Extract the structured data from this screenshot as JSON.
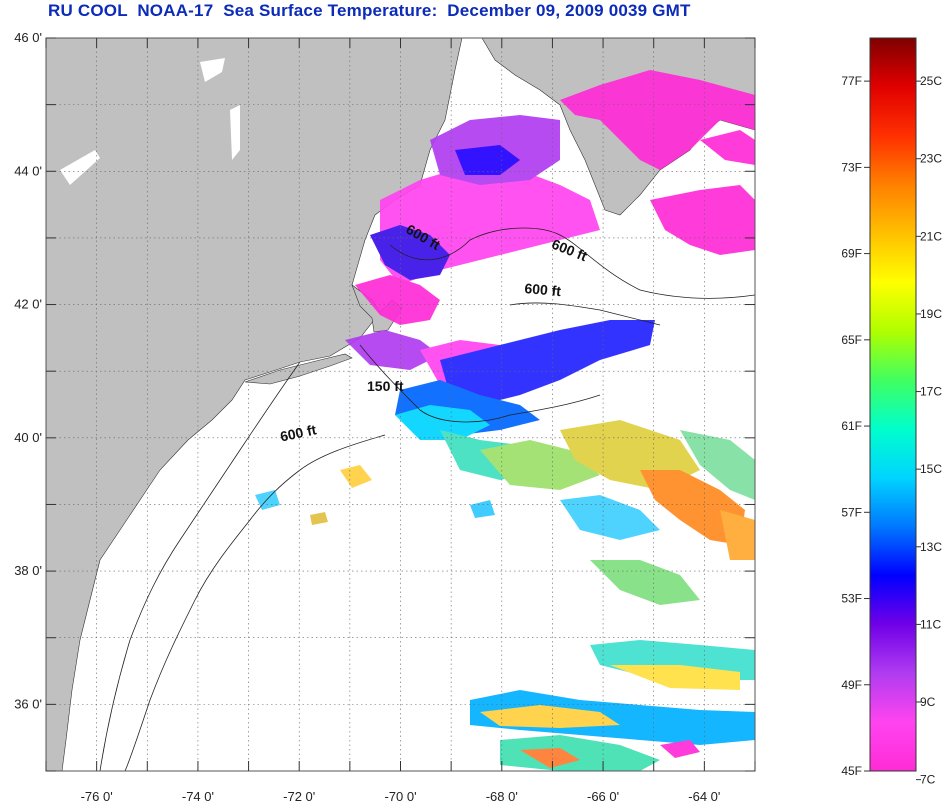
{
  "title": "RU COOL  NOAA-17  Sea Surface Temperature:  December 09, 2009 0039 GMT",
  "map": {
    "lon_range": [
      -77,
      -63
    ],
    "lat_range": [
      35,
      46
    ],
    "lat_labels": [
      {
        "lat": 46,
        "text": "46 0'"
      },
      {
        "lat": 44,
        "text": "44 0'"
      },
      {
        "lat": 42,
        "text": "42 0'"
      },
      {
        "lat": 40,
        "text": "40 0'"
      },
      {
        "lat": 38,
        "text": "38 0'"
      },
      {
        "lat": 36,
        "text": "36 0'"
      }
    ],
    "lon_labels": [
      {
        "lon": -76,
        "text": "-76 0'"
      },
      {
        "lon": -74,
        "text": "-74 0'"
      },
      {
        "lon": -72,
        "text": "-72 0'"
      },
      {
        "lon": -70,
        "text": "-70 0'"
      },
      {
        "lon": -68,
        "text": "-68 0'"
      },
      {
        "lon": -66,
        "text": "-66 0'"
      },
      {
        "lon": -64,
        "text": "-64 0'"
      }
    ],
    "contour_labels": [
      {
        "text": "600 ft",
        "lon": -69.6,
        "lat": 42.95,
        "angle": 30
      },
      {
        "text": "600 ft",
        "lon": -66.7,
        "lat": 42.75,
        "angle": 22
      },
      {
        "text": "600 ft",
        "lon": -67.2,
        "lat": 42.15,
        "angle": 5
      },
      {
        "text": "150 ft",
        "lon": -70.3,
        "lat": 40.7,
        "angle": 0
      },
      {
        "text": "600 ft",
        "lon": -72.0,
        "lat": 40.0,
        "angle": -12
      }
    ],
    "land_color": "#c0c0c0",
    "no_data_color": "#ffffff"
  },
  "colorbar": {
    "min_f": 45,
    "max_f": 79,
    "fahrenheit_labels": [
      "77F",
      "73F",
      "69F",
      "65F",
      "61F",
      "57F",
      "53F",
      "49F",
      "45F"
    ],
    "fahrenheit_values": [
      77,
      73,
      69,
      65,
      61,
      57,
      53,
      49,
      45
    ],
    "celsius_labels": [
      "25C",
      "23C",
      "21C",
      "19C",
      "17C",
      "15C",
      "13C",
      "11C",
      "9C",
      "7C"
    ],
    "celsius_values": [
      25,
      23,
      21,
      19,
      17,
      15,
      13,
      11,
      9,
      7
    ],
    "colors": [
      "#ff2bd6",
      "#ff44f0",
      "#b03cf0",
      "#7000e8",
      "#0000ff",
      "#0078ff",
      "#00d4ff",
      "#00ffcc",
      "#40ff60",
      "#b0ff00",
      "#ffff00",
      "#ffc000",
      "#ff8000",
      "#ff3000",
      "#e00000",
      "#800000"
    ]
  }
}
